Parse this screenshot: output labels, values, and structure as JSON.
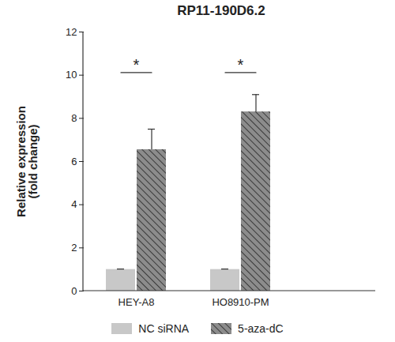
{
  "chart_data": {
    "type": "bar",
    "title": "RP11-190D6.2",
    "y_label": "Relative expression\n(fold change)",
    "categories": [
      "HEY-A8",
      "HO8910-PM"
    ],
    "series": [
      {
        "name": "NC siRNA",
        "color": "#c8c8c8",
        "values": [
          1.0,
          1.0
        ],
        "errors": [
          0.02,
          0.02
        ]
      },
      {
        "name": "5-aza-dC",
        "color": "#8c8c8c",
        "values": [
          6.55,
          8.3
        ],
        "errors": [
          0.95,
          0.8
        ]
      }
    ],
    "significance": [
      "*",
      "*"
    ],
    "ylim": [
      0,
      12
    ],
    "yticks": [
      0,
      2,
      4,
      6,
      8,
      10,
      12
    ],
    "legend": "bottom"
  }
}
